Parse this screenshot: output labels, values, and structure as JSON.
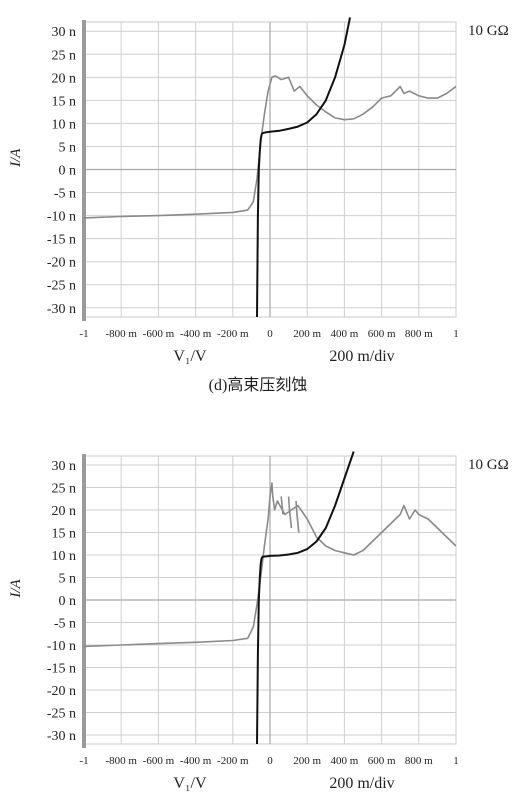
{
  "chart_data": [
    {
      "type": "line",
      "caption": "(d)高束压刻蚀",
      "ylabel": "I/A",
      "xlabel": "V₁/V",
      "scale_label": "200 m/div",
      "annotation": "10 GΩ",
      "y_tick_labels": [
        "30 n",
        "25 n",
        "20 n",
        "15 n",
        "10 n",
        "5 n",
        "0 n",
        "-5 n",
        "-10 n",
        "-15 n",
        "-20 n",
        "-25 n",
        "-30 n"
      ],
      "x_tick_labels": [
        "-1",
        "-800 m",
        "-600 m",
        "-400 m",
        "-200 m",
        "0",
        "200 m",
        "400 m",
        "600 m",
        "800 m",
        "1"
      ],
      "xlim": [
        -1,
        1
      ],
      "ylim": [
        -32,
        32
      ],
      "series": [
        {
          "color": "#8a8a8a",
          "x": [
            -1,
            -0.8,
            -0.6,
            -0.4,
            -0.2,
            -0.12,
            -0.09,
            -0.07,
            -0.05,
            -0.03,
            -0.01,
            0.01,
            0.03,
            0.06,
            0.1,
            0.13,
            0.16,
            0.2,
            0.25,
            0.3,
            0.35,
            0.4,
            0.45,
            0.5,
            0.55,
            0.6,
            0.65,
            0.7,
            0.72,
            0.75,
            0.8,
            0.85,
            0.9,
            0.95,
            1.0
          ],
          "y": [
            -10.5,
            -10.2,
            -10,
            -9.7,
            -9.3,
            -8.8,
            -7,
            -2,
            6,
            12,
            17,
            20,
            20.3,
            19.5,
            20,
            17,
            18,
            16,
            14,
            12.5,
            11.2,
            10.8,
            11,
            12,
            13.5,
            15.5,
            16,
            18,
            16.5,
            17,
            16,
            15.5,
            15.5,
            16.5,
            18
          ]
        },
        {
          "color": "#111111",
          "x": [
            -0.07,
            -0.065,
            -0.06,
            -0.055,
            -0.05,
            -0.045,
            -0.04,
            -0.02,
            0,
            0.05,
            0.1,
            0.15,
            0.2,
            0.25,
            0.3,
            0.35,
            0.4,
            0.43
          ],
          "y": [
            -32,
            -10,
            0,
            4,
            6.5,
            7.6,
            7.9,
            8.1,
            8.2,
            8.4,
            8.8,
            9.3,
            10.2,
            12,
            15,
            20,
            27,
            33
          ]
        }
      ]
    },
    {
      "type": "line",
      "caption": "",
      "ylabel": "I/A",
      "xlabel": "V₁/V",
      "scale_label": "200 m/div",
      "annotation": "10 GΩ",
      "y_tick_labels": [
        "30 n",
        "25 n",
        "20 n",
        "15 n",
        "10 n",
        "5 n",
        "0 n",
        "-5 n",
        "-10 n",
        "-15 n",
        "-20 n",
        "-25 n",
        "-30 n"
      ],
      "x_tick_labels": [
        "-1",
        "-800 m",
        "-600 m",
        "-400 m",
        "-200 m",
        "0",
        "200 m",
        "400 m",
        "600 m",
        "800 m",
        "1"
      ],
      "xlim": [
        -1,
        1
      ],
      "ylim": [
        -32,
        32
      ],
      "series": [
        {
          "color": "#8a8a8a",
          "x": [
            -1,
            -0.8,
            -0.6,
            -0.4,
            -0.2,
            -0.12,
            -0.09,
            -0.07,
            -0.05,
            -0.03,
            -0.01,
            0.0,
            0.01,
            0.015,
            0.025,
            0.04,
            0.08,
            0.15,
            0.2,
            0.25,
            0.3,
            0.35,
            0.4,
            0.45,
            0.5,
            0.55,
            0.6,
            0.65,
            0.7,
            0.72,
            0.75,
            0.78,
            0.8,
            0.85,
            0.9,
            0.95,
            1.0
          ],
          "y": [
            -10.3,
            -10,
            -9.7,
            -9.4,
            -9,
            -8.5,
            -6,
            -1,
            5,
            12,
            18,
            23,
            26,
            23,
            20,
            22,
            19,
            21,
            18,
            14,
            12,
            11,
            10.5,
            10,
            11,
            13,
            15,
            17,
            19,
            21,
            18,
            20,
            19,
            18,
            16,
            14,
            12
          ]
        },
        {
          "color": "#8a8a8a",
          "x": [
            0.06,
            0.065,
            0.07
          ],
          "y": [
            23,
            21,
            19
          ]
        },
        {
          "color": "#8a8a8a",
          "x": [
            0.1,
            0.105,
            0.11,
            0.115
          ],
          "y": [
            23,
            20,
            18,
            16
          ]
        },
        {
          "color": "#8a8a8a",
          "x": [
            0.14,
            0.145,
            0.15,
            0.155
          ],
          "y": [
            22,
            19,
            17,
            15
          ]
        },
        {
          "color": "#111111",
          "x": [
            -0.07,
            -0.065,
            -0.06,
            -0.055,
            -0.05,
            -0.045,
            -0.04,
            -0.02,
            0,
            0.05,
            0.1,
            0.15,
            0.2,
            0.25,
            0.3,
            0.35,
            0.4,
            0.45
          ],
          "y": [
            -32,
            -12,
            0,
            5,
            8,
            9.3,
            9.6,
            9.7,
            9.8,
            9.9,
            10.1,
            10.5,
            11.3,
            13,
            16,
            21,
            27,
            33
          ]
        }
      ]
    }
  ]
}
